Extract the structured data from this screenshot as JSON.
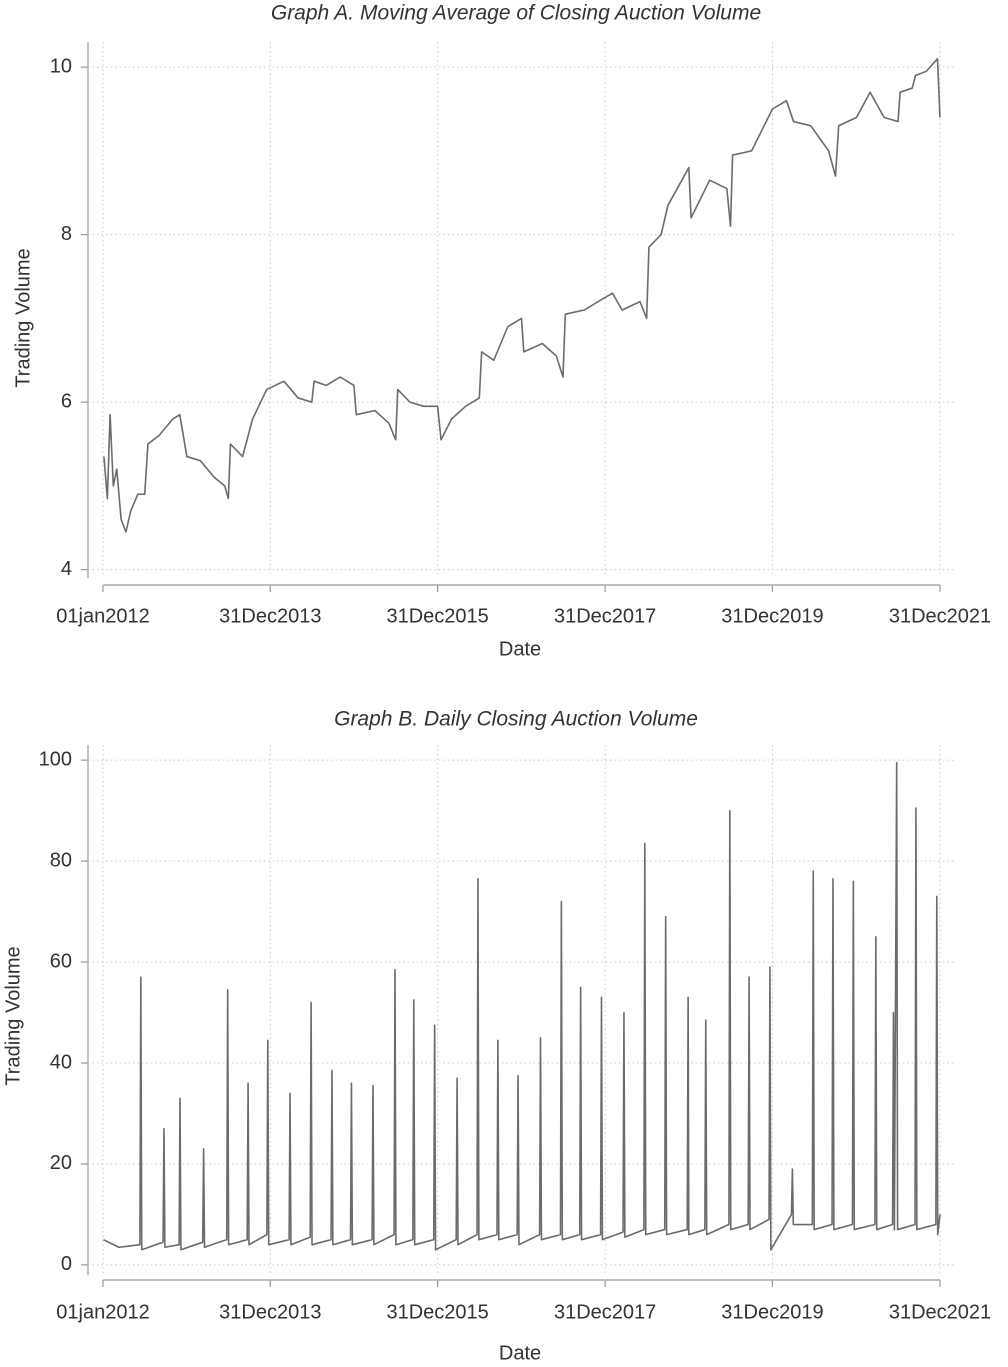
{
  "chart_data": [
    {
      "type": "line",
      "title": "Graph A. Moving Average of Closing Auction Volume",
      "xlabel": "Date",
      "ylabel": "Trading Volume",
      "color": "#6b6b6b",
      "grid": true,
      "xlim": [
        "2012-01-01",
        "2021-12-31"
      ],
      "xticks": [
        {
          "value": "2012-01-01",
          "label": "01jan2012"
        },
        {
          "value": "2013-12-31",
          "label": "31Dec2013"
        },
        {
          "value": "2015-12-31",
          "label": "31Dec2015"
        },
        {
          "value": "2017-12-31",
          "label": "31Dec2017"
        },
        {
          "value": "2019-12-31",
          "label": "31Dec2019"
        },
        {
          "value": "2021-12-31",
          "label": "31Dec2021"
        }
      ],
      "ylim": [
        3.9,
        10.3
      ],
      "yticks": [
        4,
        6,
        8,
        10
      ],
      "x": [
        "2012-01-05",
        "2012-01-20",
        "2012-02-01",
        "2012-02-15",
        "2012-03-01",
        "2012-03-20",
        "2012-04-10",
        "2012-05-01",
        "2012-06-01",
        "2012-07-01",
        "2012-07-15",
        "2012-09-01",
        "2012-11-01",
        "2012-12-01",
        "2013-01-01",
        "2013-03-01",
        "2013-05-01",
        "2013-06-15",
        "2013-07-01",
        "2013-07-10",
        "2013-09-01",
        "2013-10-15",
        "2013-12-15",
        "2014-03-01",
        "2014-05-01",
        "2014-06-30",
        "2014-07-10",
        "2014-09-01",
        "2014-11-01",
        "2014-12-31",
        "2015-01-10",
        "2015-04-01",
        "2015-06-01",
        "2015-07-01",
        "2015-07-10",
        "2015-09-01",
        "2015-11-01",
        "2015-12-31",
        "2016-01-15",
        "2016-03-01",
        "2016-05-01",
        "2016-06-30",
        "2016-07-10",
        "2016-09-01",
        "2016-11-01",
        "2016-12-31",
        "2017-01-10",
        "2017-04-01",
        "2017-06-01",
        "2017-06-30",
        "2017-07-10",
        "2017-10-01",
        "2017-12-31",
        "2018-02-01",
        "2018-03-15",
        "2018-06-01",
        "2018-06-30",
        "2018-07-10",
        "2018-09-01",
        "2018-10-01",
        "2018-12-31",
        "2019-01-10",
        "2019-04-01",
        "2019-06-15",
        "2019-07-01",
        "2019-07-10",
        "2019-10-01",
        "2019-12-31",
        "2020-03-01",
        "2020-04-01",
        "2020-06-15",
        "2020-09-01",
        "2020-10-01",
        "2020-10-15",
        "2021-01-01",
        "2021-03-01",
        "2021-05-01",
        "2021-07-01",
        "2021-07-10",
        "2021-09-01",
        "2021-09-15",
        "2021-11-01",
        "2021-12-20",
        "2021-12-31"
      ],
      "values": [
        5.35,
        4.85,
        5.85,
        5.0,
        5.2,
        4.6,
        4.45,
        4.7,
        4.9,
        4.9,
        5.5,
        5.6,
        5.8,
        5.85,
        5.35,
        5.3,
        5.1,
        5.0,
        4.85,
        5.5,
        5.35,
        5.8,
        6.15,
        6.25,
        6.05,
        6.0,
        6.25,
        6.2,
        6.3,
        6.2,
        5.85,
        5.9,
        5.75,
        5.55,
        6.15,
        6.0,
        5.95,
        5.95,
        5.55,
        5.8,
        5.95,
        6.05,
        6.6,
        6.5,
        6.9,
        7.0,
        6.6,
        6.7,
        6.55,
        6.3,
        7.05,
        7.1,
        7.25,
        7.3,
        7.1,
        7.2,
        7.0,
        7.85,
        8.0,
        8.35,
        8.8,
        8.2,
        8.65,
        8.55,
        8.1,
        8.95,
        9.0,
        9.5,
        9.6,
        9.35,
        9.3,
        9.0,
        8.7,
        9.3,
        9.4,
        9.7,
        9.4,
        9.35,
        9.7,
        9.75,
        9.9,
        9.95,
        10.1,
        9.4
      ]
    },
    {
      "type": "line",
      "title": "Graph B. Daily Closing Auction Volume",
      "xlabel": "Date",
      "ylabel": "Trading Volume",
      "color": "#6b6b6b",
      "grid": true,
      "xlim": [
        "2012-01-01",
        "2021-12-31"
      ],
      "xticks": [
        {
          "value": "2012-01-01",
          "label": "01jan2012"
        },
        {
          "value": "2013-12-31",
          "label": "31Dec2013"
        },
        {
          "value": "2015-12-31",
          "label": "31Dec2015"
        },
        {
          "value": "2017-12-31",
          "label": "31Dec2017"
        },
        {
          "value": "2019-12-31",
          "label": "31Dec2019"
        },
        {
          "value": "2021-12-31",
          "label": "31Dec2021"
        }
      ],
      "ylim": [
        -2,
        103
      ],
      "yticks": [
        0,
        20,
        40,
        60,
        80,
        100
      ],
      "x": [
        "2012-01-03",
        "2012-03-10",
        "2012-06-10",
        "2012-06-14",
        "2012-06-18",
        "2012-09-19",
        "2012-09-23",
        "2012-09-27",
        "2012-11-28",
        "2012-12-02",
        "2012-12-06",
        "2013-03-11",
        "2013-03-15",
        "2013-03-19",
        "2013-06-24",
        "2013-06-28",
        "2013-07-02",
        "2013-09-21",
        "2013-09-25",
        "2013-09-29",
        "2013-12-16",
        "2013-12-20",
        "2013-12-24",
        "2014-03-23",
        "2014-03-27",
        "2014-03-31",
        "2014-06-23",
        "2014-06-27",
        "2014-07-01",
        "2014-09-22",
        "2014-09-26",
        "2014-09-30",
        "2014-12-16",
        "2014-12-20",
        "2014-12-24",
        "2015-03-20",
        "2015-03-24",
        "2015-03-28",
        "2015-06-24",
        "2015-06-28",
        "2015-07-02",
        "2015-09-14",
        "2015-09-18",
        "2015-09-22",
        "2015-12-14",
        "2015-12-18",
        "2015-12-22",
        "2016-03-21",
        "2016-03-25",
        "2016-03-29",
        "2016-06-20",
        "2016-06-24",
        "2016-06-28",
        "2016-09-15",
        "2016-09-19",
        "2016-09-23",
        "2016-12-12",
        "2016-12-16",
        "2016-12-20",
        "2017-03-20",
        "2017-03-24",
        "2017-03-28",
        "2017-06-19",
        "2017-06-23",
        "2017-06-27",
        "2017-09-11",
        "2017-09-15",
        "2017-09-19",
        "2017-12-11",
        "2017-12-15",
        "2017-12-19",
        "2018-03-19",
        "2018-03-23",
        "2018-03-27",
        "2018-06-18",
        "2018-06-22",
        "2018-06-26",
        "2018-09-17",
        "2018-09-21",
        "2018-09-25",
        "2018-12-24",
        "2018-12-28",
        "2018-12-31",
        "2019-03-11",
        "2019-03-15",
        "2019-03-19",
        "2019-06-24",
        "2019-06-28",
        "2019-07-02",
        "2019-09-16",
        "2019-09-20",
        "2019-09-24",
        "2019-12-16",
        "2019-12-20",
        "2019-12-24",
        "2020-03-23",
        "2020-03-27",
        "2020-03-31",
        "2020-06-22",
        "2020-06-26",
        "2020-06-30",
        "2020-09-16",
        "2020-09-20",
        "2020-09-24",
        "2020-12-14",
        "2020-12-18",
        "2020-12-22",
        "2021-03-22",
        "2021-03-26",
        "2021-03-30",
        "2021-06-07",
        "2021-06-11",
        "2021-06-15",
        "2021-06-25",
        "2021-06-29",
        "2021-09-13",
        "2021-09-17",
        "2021-09-21",
        "2021-12-13",
        "2021-12-17",
        "2021-12-21",
        "2021-12-31"
      ],
      "values": [
        5,
        3.5,
        4,
        57,
        3,
        4.5,
        27,
        3.5,
        4,
        33,
        3,
        4.5,
        23,
        3.5,
        5,
        54.5,
        4,
        5,
        36,
        4,
        6,
        44.5,
        4,
        5,
        34,
        4,
        5.5,
        52,
        4,
        5,
        38.5,
        4,
        5,
        36,
        4,
        5,
        35.5,
        4,
        6,
        58.5,
        4,
        5,
        52.5,
        4,
        5,
        47.5,
        3,
        5,
        37,
        4,
        6,
        76.5,
        5,
        6,
        44.5,
        5,
        6,
        37.5,
        4,
        6,
        45,
        5,
        6,
        72,
        5,
        6,
        55,
        5,
        6,
        53,
        5,
        6.5,
        50,
        5.5,
        7,
        83.5,
        6,
        7,
        69,
        6,
        7,
        53,
        6,
        7,
        48.5,
        6,
        8,
        90,
        7,
        8,
        57,
        7,
        9,
        59,
        3,
        10,
        19,
        8,
        8,
        78,
        7,
        8,
        76.5,
        7,
        8,
        76,
        7,
        8,
        65,
        7,
        8,
        50,
        7,
        99.5,
        7,
        8,
        90.5,
        7,
        8,
        73,
        6,
        10
      ]
    }
  ]
}
